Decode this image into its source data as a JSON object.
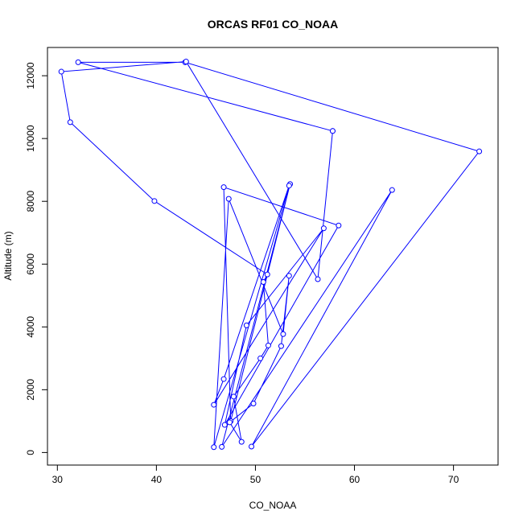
{
  "chart_data": {
    "type": "line",
    "title": "ORCAS RF01 CO_NOAA",
    "xlabel": "CO_NOAA",
    "ylabel": "Altitude (m)",
    "xlim": [
      29.0,
      74.5
    ],
    "ylim": [
      -400,
      12900
    ],
    "x_ticks": [
      30,
      40,
      50,
      60,
      70
    ],
    "y_ticks": [
      0,
      2000,
      4000,
      6000,
      8000,
      10000,
      12000
    ],
    "x_tick_labels": [
      "30",
      "40",
      "50",
      "60",
      "70"
    ],
    "y_tick_labels": [
      "0",
      "2000",
      "4000",
      "6000",
      "8000",
      "10000",
      "12000"
    ],
    "grid": false,
    "legend": "none",
    "color": "#0000ff",
    "series": [
      {
        "points": [
          {
            "x": 57.8,
            "y": 10240
          },
          {
            "x": 32.1,
            "y": 12430
          },
          {
            "x": 42.9,
            "y": 12430
          },
          {
            "x": 72.6,
            "y": 9590
          },
          {
            "x": 49.6,
            "y": 190
          },
          {
            "x": 63.8,
            "y": 8360
          },
          {
            "x": 46.6,
            "y": 180
          },
          {
            "x": 53.5,
            "y": 8550
          },
          {
            "x": 47.5,
            "y": 1000
          },
          {
            "x": 46.8,
            "y": 8450
          },
          {
            "x": 58.4,
            "y": 7230
          },
          {
            "x": 46.9,
            "y": 880
          },
          {
            "x": 49.1,
            "y": 4050
          },
          {
            "x": 56.9,
            "y": 7140
          },
          {
            "x": 45.8,
            "y": 1520
          },
          {
            "x": 46.8,
            "y": 2340
          },
          {
            "x": 53.4,
            "y": 8500
          },
          {
            "x": 45.8,
            "y": 170
          },
          {
            "x": 47.3,
            "y": 8080
          },
          {
            "x": 52.8,
            "y": 3770
          },
          {
            "x": 53.4,
            "y": 5630
          },
          {
            "x": 52.6,
            "y": 3390
          },
          {
            "x": 49.8,
            "y": 1560
          },
          {
            "x": 47.4,
            "y": 960
          },
          {
            "x": 48.6,
            "y": 340
          },
          {
            "x": 47.8,
            "y": 1780
          },
          {
            "x": 50.5,
            "y": 3000
          },
          {
            "x": 51.3,
            "y": 3410
          },
          {
            "x": 50.8,
            "y": 5430
          },
          {
            "x": 51.2,
            "y": 5670
          },
          {
            "x": 39.8,
            "y": 8010
          },
          {
            "x": 31.3,
            "y": 10520
          },
          {
            "x": 30.4,
            "y": 12130
          },
          {
            "x": 43.0,
            "y": 12450
          },
          {
            "x": 56.3,
            "y": 5520
          },
          {
            "x": 57.8,
            "y": 10240
          }
        ]
      }
    ]
  }
}
